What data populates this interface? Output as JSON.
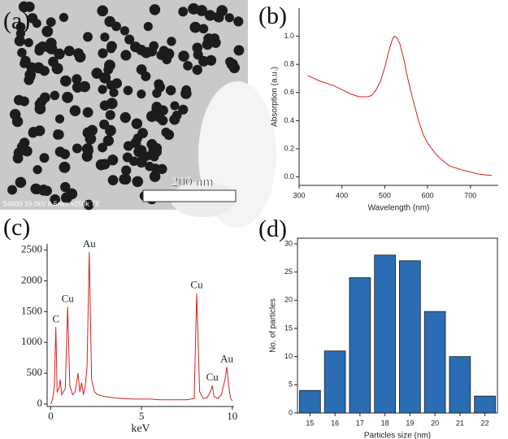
{
  "image": {
    "label": "(a)",
    "scale_bar": "200 nm",
    "caption": "S4800 15.0kV 8.5mm x250k TE"
  },
  "chart_data": [
    {
      "type": "line",
      "label": "(b)",
      "x_label": "Wavelength (nm)",
      "y_label": "Absorption (a.u.)",
      "color": "#d62020",
      "x": [
        320,
        350,
        380,
        400,
        420,
        440,
        460,
        470,
        480,
        490,
        500,
        510,
        518,
        522,
        528,
        535,
        545,
        550,
        560,
        570,
        580,
        590,
        600,
        610,
        620,
        630,
        650,
        680,
        720,
        750
      ],
      "values": [
        0.72,
        0.68,
        0.65,
        0.62,
        0.59,
        0.57,
        0.57,
        0.58,
        0.62,
        0.68,
        0.78,
        0.9,
        0.98,
        1.0,
        0.99,
        0.95,
        0.83,
        0.75,
        0.62,
        0.5,
        0.39,
        0.3,
        0.24,
        0.2,
        0.16,
        0.13,
        0.08,
        0.05,
        0.02,
        0.01
      ],
      "xlim": [
        300,
        765
      ],
      "xticks": [
        300,
        400,
        500,
        600,
        700
      ],
      "ylim": [
        -0.06,
        1.2
      ],
      "yticks": [
        {
          "value": 0,
          "label": "0.0"
        },
        0.2,
        0.4,
        0.6,
        0.8,
        {
          "value": 1,
          "label": "1.0"
        }
      ]
    },
    {
      "type": "spectrum",
      "label": "(c)",
      "x_label": "keV",
      "color": "#d62020",
      "x": [
        0,
        0.1,
        0.2,
        0.28,
        0.35,
        0.45,
        0.52,
        0.6,
        0.7,
        0.8,
        0.93,
        1.05,
        1.2,
        1.35,
        1.5,
        1.6,
        1.7,
        1.8,
        1.9,
        2.0,
        2.12,
        2.25,
        2.4,
        2.6,
        3.0,
        3.5,
        4,
        4.5,
        5,
        5.5,
        6,
        6.5,
        7,
        7.5,
        7.9,
        8.04,
        8.2,
        8.4,
        8.6,
        8.8,
        8.9,
        9.0,
        9.2,
        9.4,
        9.6,
        9.7,
        9.8,
        9.9,
        10
      ],
      "values": [
        0,
        80,
        300,
        1250,
        200,
        250,
        400,
        150,
        200,
        250,
        1580,
        300,
        150,
        200,
        500,
        200,
        350,
        150,
        300,
        600,
        2470,
        400,
        200,
        150,
        120,
        100,
        90,
        80,
        80,
        80,
        70,
        70,
        70,
        70,
        90,
        1800,
        200,
        90,
        100,
        200,
        300,
        120,
        90,
        150,
        400,
        600,
        300,
        100,
        50
      ],
      "annotations": [
        {
          "text": "C",
          "x": 0.28,
          "y": 1250
        },
        {
          "text": "Cu",
          "x": 0.93,
          "y": 1580
        },
        {
          "text": "Au",
          "x": 2.12,
          "y": 2470
        },
        {
          "text": "Cu",
          "x": 8.04,
          "y": 1800
        },
        {
          "text": "Cu",
          "x": 8.9,
          "y": 300
        },
        {
          "text": "Au",
          "x": 9.7,
          "y": 600
        }
      ],
      "xlim": [
        -0.2,
        10.1
      ],
      "xticks": [
        0,
        5,
        10
      ],
      "ylim": [
        -40,
        2600
      ],
      "yticks": [
        0,
        500,
        1000,
        1500,
        2000,
        2500
      ]
    },
    {
      "type": "bar",
      "label": "(d)",
      "x_label": "Particles size (nm)",
      "y_label": "No. of particles",
      "color": "#2a6db5",
      "categories": [
        "15",
        "16",
        "17",
        "18",
        "19",
        "20",
        "21",
        "22"
      ],
      "values": [
        4,
        11,
        24,
        28,
        27,
        18,
        10,
        3
      ],
      "ylim": [
        0,
        31
      ],
      "yticks": [
        0,
        5,
        10,
        15,
        20,
        25,
        30
      ]
    }
  ]
}
